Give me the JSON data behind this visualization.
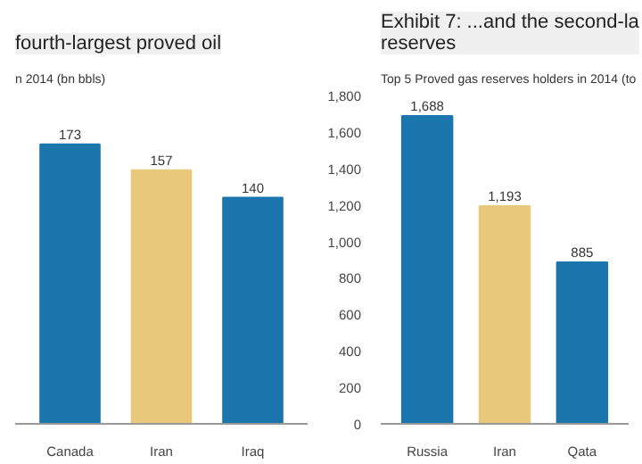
{
  "chart_data": [
    {
      "type": "bar",
      "title": "fourth-largest proved oil",
      "subtitle": "n 2014 (bn bbls)",
      "categories": [
        "Canada",
        "Iran",
        "Iraq"
      ],
      "values": [
        173,
        157,
        140
      ],
      "colors": [
        "#1a76ac",
        "#e8c87a",
        "#1a76ac"
      ],
      "data_labels": true,
      "tick_labels": "x",
      "grid": false
    },
    {
      "type": "bar",
      "title": "Exhibit 7: ...and the second-la\nreserves",
      "subtitle": "Top 5 Proved gas reserves holders in 2014 (to",
      "categories": [
        "Russia",
        "Iran",
        "Qata"
      ],
      "values": [
        1688,
        1193,
        885
      ],
      "value_labels": [
        "1,688",
        "1,193",
        "885"
      ],
      "colors": [
        "#1a76ac",
        "#e8c87a",
        "#1a76ac"
      ],
      "ylim": [
        0,
        1800
      ],
      "yticks": [
        0,
        200,
        400,
        600,
        800,
        {
          "value": 1000,
          "label": "1,000"
        },
        {
          "value": 1200,
          "label": "1,200"
        },
        {
          "value": 1400,
          "label": "1,400"
        },
        {
          "value": 1600,
          "label": "1,600"
        },
        {
          "value": 1800,
          "label": "1,800"
        }
      ],
      "grid": false
    }
  ]
}
